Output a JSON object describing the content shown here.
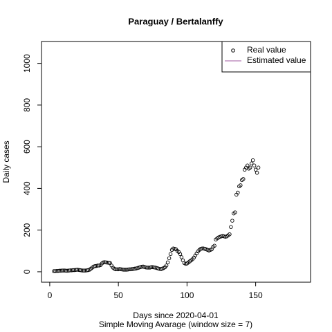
{
  "chart_data": {
    "type": "scatter",
    "title": "Paraguay / Bertalanffy",
    "x_label": "Days since 2020-04-01",
    "subtitle": "Simple Moving Avarage (window size = 7)",
    "y_label": "Daily cases",
    "xlim": [
      -6,
      190
    ],
    "ylim": [
      -50,
      1105
    ],
    "xticks": [
      0,
      50,
      100,
      150
    ],
    "yticks": [
      0,
      200,
      400,
      600,
      800,
      1000
    ],
    "legend": "topright",
    "x": [
      3,
      4,
      5,
      6,
      7,
      8,
      9,
      10,
      11,
      12,
      13,
      14,
      15,
      16,
      17,
      18,
      19,
      20,
      21,
      22,
      23,
      24,
      25,
      26,
      27,
      28,
      29,
      30,
      31,
      32,
      33,
      34,
      35,
      36,
      37,
      38,
      39,
      40,
      41,
      42,
      43,
      44,
      45,
      46,
      47,
      48,
      49,
      50,
      51,
      52,
      53,
      54,
      55,
      56,
      57,
      58,
      59,
      60,
      61,
      62,
      63,
      64,
      65,
      66,
      67,
      68,
      69,
      70,
      71,
      72,
      73,
      74,
      75,
      76,
      77,
      78,
      79,
      80,
      81,
      82,
      83,
      84,
      85,
      86,
      87,
      88,
      89,
      90,
      91,
      92,
      93,
      94,
      95,
      96,
      97,
      98,
      99,
      100,
      101,
      102,
      103,
      104,
      105,
      106,
      107,
      108,
      109,
      110,
      111,
      112,
      113,
      114,
      115,
      116,
      117,
      118,
      119,
      120,
      121,
      122,
      123,
      124,
      125,
      126,
      127,
      128,
      129,
      130,
      131,
      132,
      133,
      134,
      135,
      136,
      137,
      138,
      139,
      140,
      141,
      142,
      143,
      144,
      145,
      146,
      147,
      148,
      149,
      150,
      151,
      152
    ],
    "series": [
      {
        "name": "Real value",
        "color": "#000000",
        "values": [
          3,
          3,
          4,
          4,
          5,
          5,
          6,
          6,
          6,
          5,
          5,
          6,
          7,
          7,
          8,
          8,
          9,
          10,
          9,
          8,
          7,
          6,
          6,
          6,
          7,
          8,
          10,
          15,
          20,
          25,
          27,
          28,
          30,
          30,
          32,
          40,
          45,
          46,
          45,
          44,
          43,
          42,
          30,
          20,
          15,
          12,
          12,
          12,
          13,
          12,
          11,
          10,
          10,
          10,
          11,
          12,
          12,
          13,
          14,
          15,
          16,
          18,
          20,
          22,
          24,
          25,
          23,
          21,
          20,
          20,
          20,
          22,
          22,
          21,
          20,
          18,
          16,
          14,
          13,
          15,
          18,
          22,
          30,
          45,
          65,
          85,
          105,
          112,
          110,
          108,
          100,
          95,
          85,
          70,
          55,
          42,
          38,
          40,
          45,
          50,
          55,
          60,
          68,
          78,
          88,
          98,
          105,
          110,
          112,
          112,
          110,
          108,
          105,
          102,
          105,
          108,
          120,
          125,
          155,
          160,
          165,
          168,
          170,
          172,
          170,
          168,
          170,
          175,
          180,
          215,
          245,
          280,
          285,
          370,
          380,
          410,
          415,
          440,
          445,
          490,
          500,
          510,
          495,
          500,
          520,
          535,
          510,
          490,
          475,
          500
        ]
      },
      {
        "name": "Estimated value",
        "color": "#a05aa0",
        "values": []
      }
    ]
  }
}
